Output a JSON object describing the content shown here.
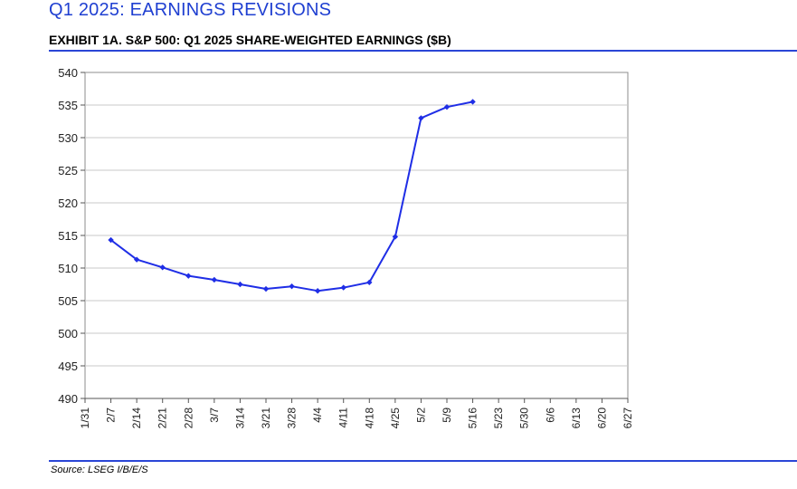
{
  "header": {
    "title": "Q1 2025: EARNINGS REVISIONS",
    "exhibit": "EXHIBIT 1A.  S&P 500: Q1 2025 SHARE-WEIGHTED EARNINGS ($B)"
  },
  "footer": {
    "source": "Source: LSEG I/B/E/S"
  },
  "colors": {
    "line": "#1f2ee6",
    "accent": "#2a46d6",
    "title": "#1f3fd1",
    "grid": "#c8c8c8"
  },
  "chart_data": {
    "type": "line",
    "title": "",
    "xlabel": "",
    "ylabel": "",
    "categories": [
      "1/31",
      "2/7",
      "2/14",
      "2/21",
      "2/28",
      "3/7",
      "3/14",
      "3/21",
      "3/28",
      "4/4",
      "4/11",
      "4/18",
      "4/25",
      "5/2",
      "5/9",
      "5/16",
      "5/23",
      "5/30",
      "6/6",
      "6/13",
      "6/20",
      "6/27"
    ],
    "ylim": [
      490,
      540
    ],
    "yticks": [
      490,
      495,
      500,
      505,
      510,
      515,
      520,
      525,
      530,
      535,
      540
    ],
    "grid": true,
    "legend": "none",
    "series": [
      {
        "values": [
          null,
          514.3,
          511.3,
          510.1,
          508.8,
          508.2,
          507.5,
          506.8,
          507.2,
          506.5,
          507.0,
          507.8,
          514.8,
          533.0,
          534.7,
          535.5,
          null,
          null,
          null,
          null,
          null,
          null
        ]
      }
    ]
  }
}
